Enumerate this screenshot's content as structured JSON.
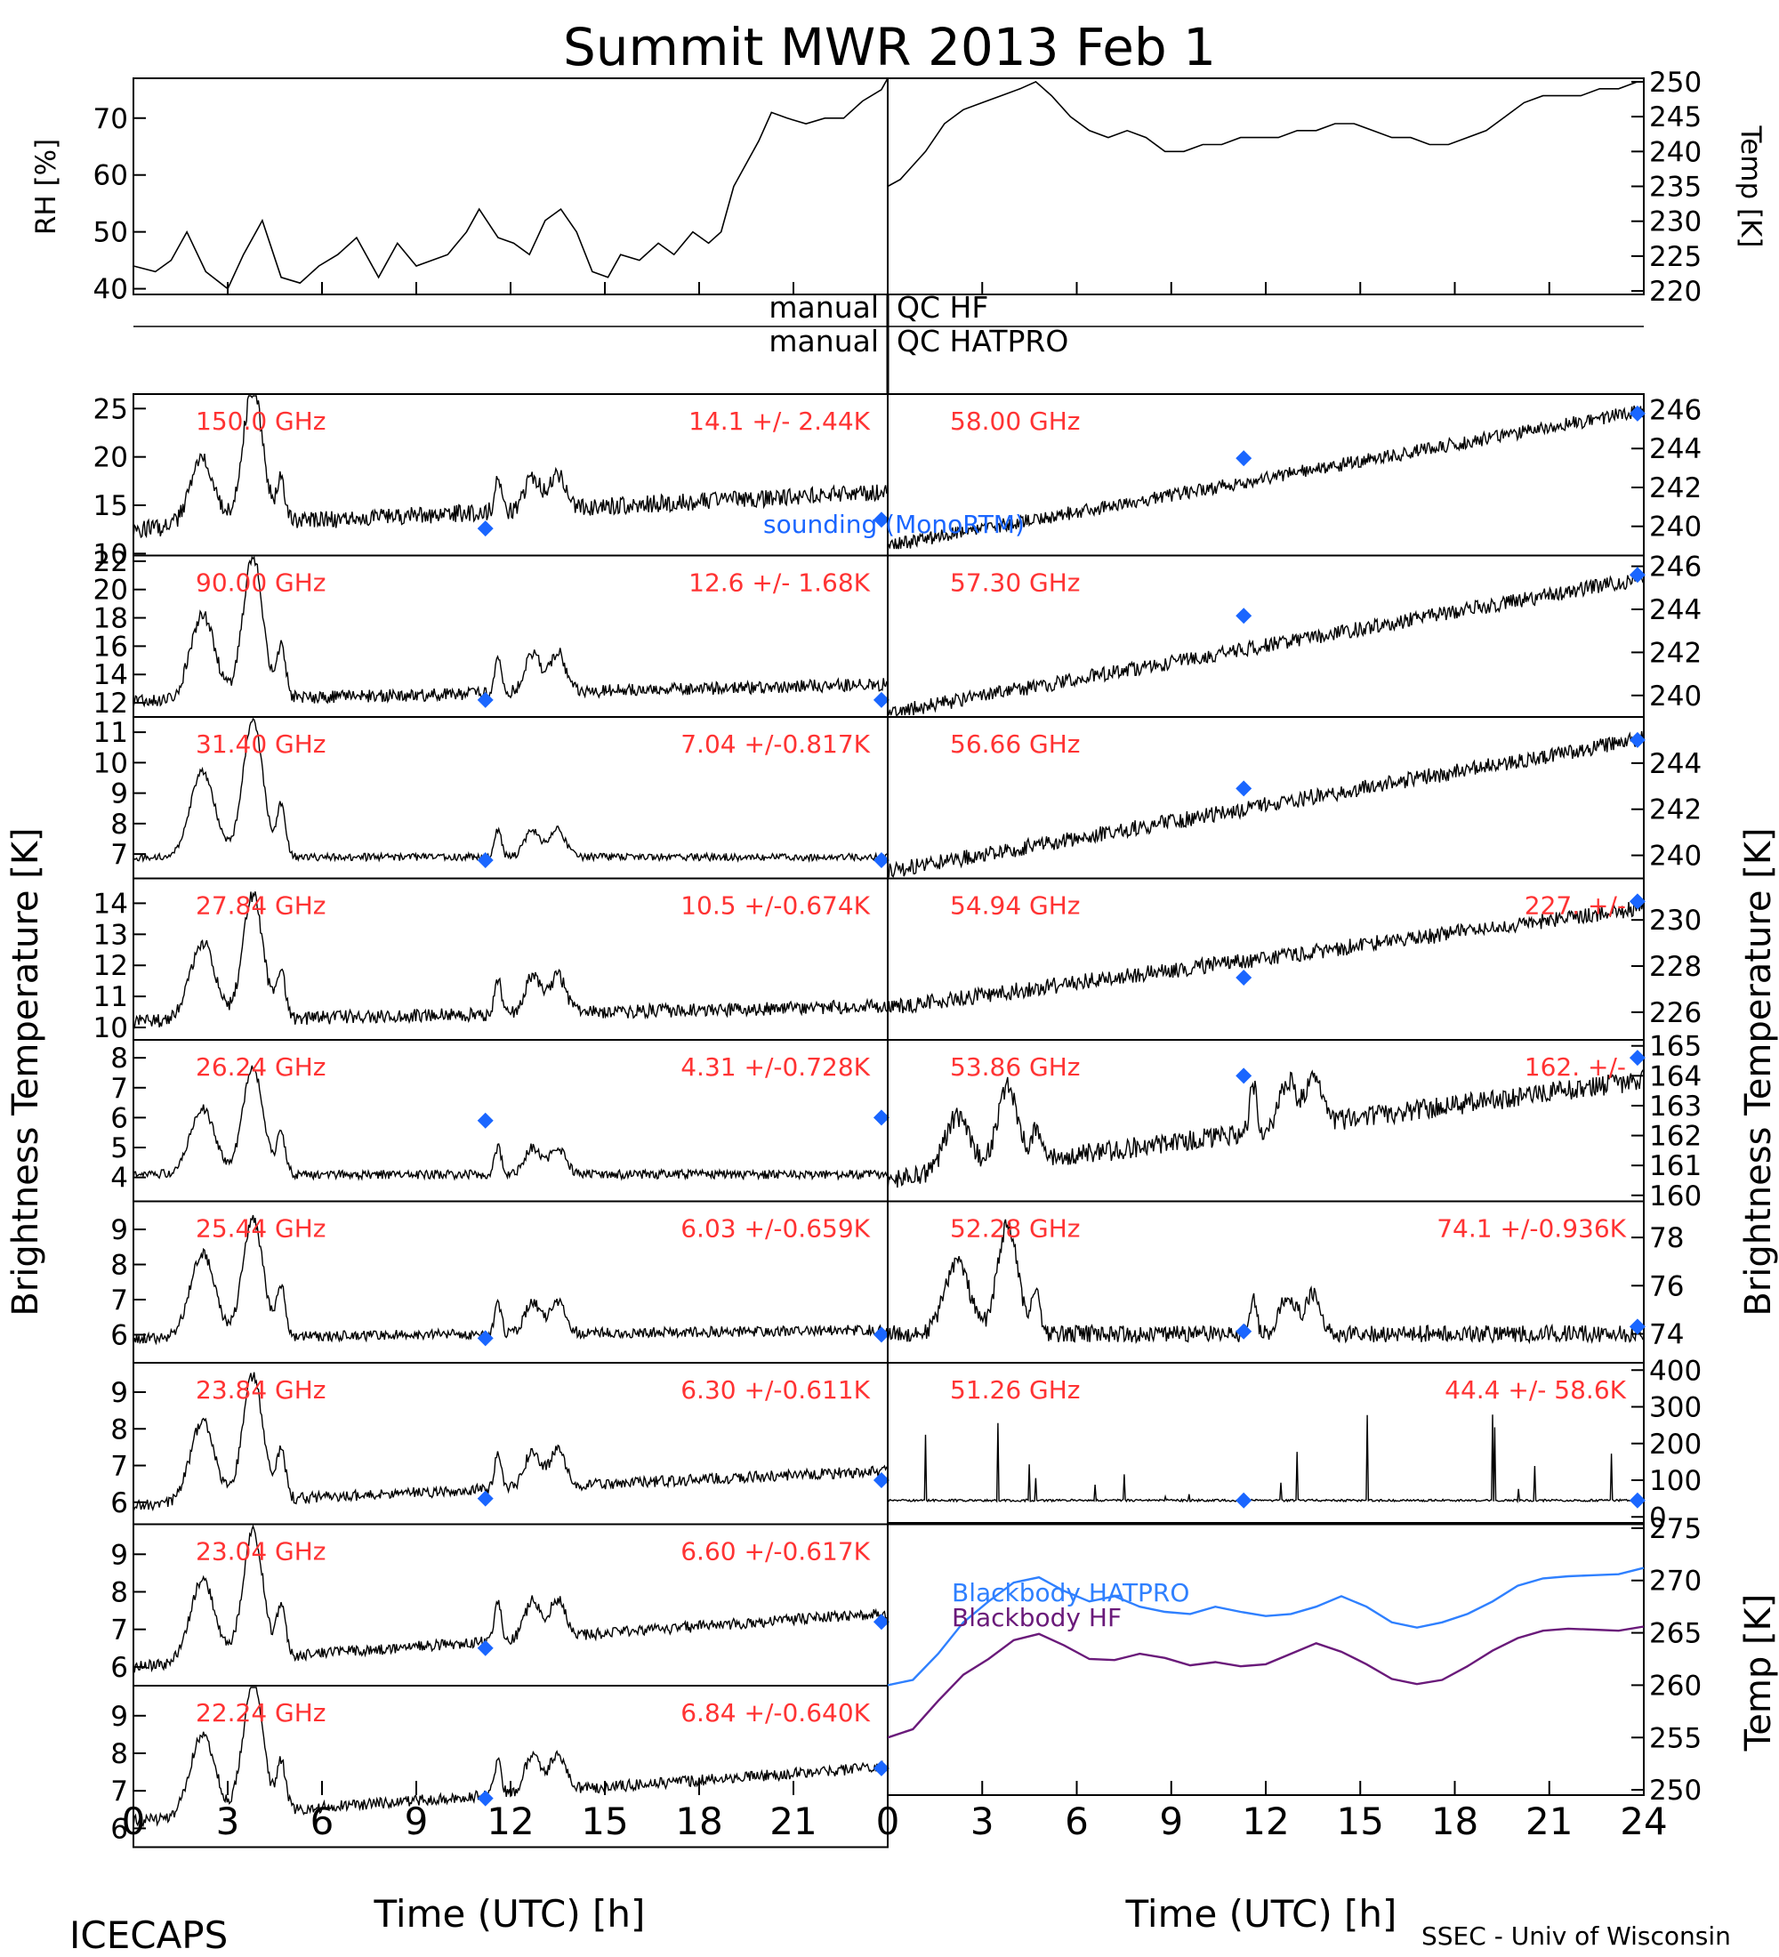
{
  "title": "Summit MWR 2013 Feb  1",
  "footer": {
    "left": "ICECAPS",
    "right": "SSEC - Univ of Wisconsin",
    "xlabel_left": "Time (UTC) [h]",
    "xlabel_right": "Time (UTC) [h]"
  },
  "qc": {
    "hf_left": "manual",
    "hf_right": "QC HF",
    "hatpro_left": "manual",
    "hatpro_right": "QC HATPRO"
  },
  "side_labels": {
    "bt_left": "Brightness Temperature [K]",
    "bt_right": "Brightness Temperature [K]",
    "bb_right": "Temp [K]"
  },
  "colors": {
    "freq_label": "#ff3333",
    "sounding": "#1a66ff",
    "blackbody_hatpro": "#2f80ff",
    "blackbody_hf": "#6a1a7a",
    "trace": "#000000"
  },
  "chart_data": [
    {
      "id": "rh-temp",
      "type": "line",
      "x_ticks": [
        "0",
        "3",
        "6",
        "9",
        "12",
        "15",
        "18",
        "21",
        "24"
      ],
      "xlim": [
        0,
        24
      ],
      "left": {
        "ylabel": "RH [%]",
        "ylim": [
          39,
          77
        ],
        "yticks": [
          "40",
          "50",
          "60",
          "70"
        ],
        "series": {
          "x": [
            0,
            0.7,
            1.2,
            1.7,
            2.3,
            3.0,
            3.5,
            4.1,
            4.7,
            5.3,
            5.9,
            6.5,
            7.1,
            7.8,
            8.4,
            9.0,
            9.5,
            10.0,
            10.6,
            11.0,
            11.6,
            12.1,
            12.6,
            13.1,
            13.6,
            14.1,
            14.6,
            15.1,
            15.5,
            16.1,
            16.7,
            17.2,
            17.8,
            18.3,
            18.7,
            19.1,
            19.5,
            19.9,
            20.3,
            20.8,
            21.4,
            22.0,
            22.6,
            23.2,
            23.8,
            24.0
          ],
          "y": [
            44,
            43,
            45,
            50,
            43,
            40,
            46,
            52,
            42,
            41,
            44,
            46,
            49,
            42,
            48,
            44,
            45,
            46,
            50,
            54,
            49,
            48,
            46,
            52,
            54,
            50,
            43,
            42,
            46,
            45,
            48,
            46,
            50,
            48,
            50,
            58,
            62,
            66,
            71,
            70,
            69,
            70,
            70,
            73,
            75,
            77
          ]
        }
      },
      "right": {
        "ylabel": "Temp [K]",
        "ylim": [
          219.5,
          250.5
        ],
        "yticks": [
          "220",
          "225",
          "230",
          "235",
          "240",
          "245",
          "250"
        ],
        "series": {
          "x": [
            0,
            0.4,
            0.8,
            1.2,
            1.8,
            2.4,
            3.0,
            3.6,
            4.2,
            4.7,
            5.2,
            5.8,
            6.4,
            7.0,
            7.6,
            8.2,
            8.8,
            9.4,
            10.0,
            10.6,
            11.2,
            11.8,
            12.4,
            13.0,
            13.6,
            14.2,
            14.8,
            15.4,
            16.0,
            16.6,
            17.2,
            17.8,
            18.4,
            19.0,
            19.6,
            20.2,
            20.8,
            21.4,
            22.0,
            22.6,
            23.2,
            23.8,
            24.0
          ],
          "y": [
            235,
            236,
            238,
            240,
            244,
            246,
            247,
            248,
            249,
            250,
            248,
            245,
            243,
            242,
            243,
            242,
            240,
            240,
            241,
            241,
            242,
            242,
            242,
            243,
            243,
            244,
            244,
            243,
            242,
            242,
            241,
            241,
            242,
            243,
            245,
            247,
            248,
            248,
            248,
            249,
            249,
            250,
            250
          ]
        }
      }
    },
    {
      "id": "tb-left",
      "type": "line",
      "x_ticks": [
        "0",
        "3",
        "6",
        "9",
        "12",
        "15",
        "18",
        "21"
      ],
      "xlim": [
        0,
        24
      ],
      "channels": [
        {
          "freq": "150.0 GHz",
          "stat": "14.1 +/-  2.44K",
          "ylim": [
            9.8,
            26.5
          ],
          "yticks": [
            "10",
            "15",
            "20",
            "25"
          ],
          "base": 12.5,
          "slope": 0.16,
          "noise": 0.9,
          "p1": 7,
          "p2": 14,
          "pc": 3.5,
          "sound": [
            [
              11.2,
              12.6
            ],
            [
              23.8,
              13.5
            ]
          ]
        },
        {
          "freq": "90.00 GHz",
          "stat": "12.6 +/-  1.68K",
          "ylim": [
            11.0,
            22.4
          ],
          "yticks": [
            "12",
            "14",
            "16",
            "18",
            "20",
            "22"
          ],
          "base": 12.1,
          "slope": 0.05,
          "noise": 0.45,
          "p1": 6,
          "p2": 10,
          "pc": 2.8,
          "sound": [
            [
              11.2,
              12.2
            ],
            [
              23.8,
              12.2
            ]
          ]
        },
        {
          "freq": "31.40 GHz",
          "stat": "7.04 +/-0.817K",
          "ylim": [
            6.2,
            11.5
          ],
          "yticks": [
            "7",
            "8",
            "9",
            "10",
            "11"
          ],
          "base": 6.9,
          "slope": 0.0,
          "noise": 0.12,
          "p1": 2.8,
          "p2": 4.5,
          "pc": 0.9,
          "sound": [
            [
              11.2,
              6.8
            ],
            [
              23.8,
              6.8
            ]
          ]
        },
        {
          "freq": "27.84 GHz",
          "stat": "10.5 +/-0.674K",
          "ylim": [
            9.6,
            14.8
          ],
          "yticks": [
            "10",
            "11",
            "12",
            "13",
            "14"
          ],
          "base": 10.2,
          "slope": 0.02,
          "noise": 0.22,
          "p1": 2.5,
          "p2": 4,
          "pc": 1.2,
          "sound": []
        },
        {
          "freq": "26.24 GHz",
          "stat": "4.31 +/-0.728K",
          "ylim": [
            3.2,
            8.6
          ],
          "yticks": [
            "4",
            "5",
            "6",
            "7",
            "8"
          ],
          "base": 4.1,
          "slope": 0.0,
          "noise": 0.15,
          "p1": 2.2,
          "p2": 3.6,
          "pc": 0.9,
          "sound": [
            [
              11.2,
              5.9
            ],
            [
              23.8,
              6.0
            ]
          ]
        },
        {
          "freq": "25.44 GHz",
          "stat": "6.03 +/-0.659K",
          "ylim": [
            5.2,
            9.8
          ],
          "yticks": [
            "6",
            "7",
            "8",
            "9"
          ],
          "base": 5.9,
          "slope": 0.01,
          "noise": 0.15,
          "p1": 2.4,
          "p2": 3.4,
          "pc": 0.9,
          "sound": [
            [
              11.2,
              5.9
            ],
            [
              23.8,
              6.0
            ]
          ]
        },
        {
          "freq": "23.84 GHz",
          "stat": "6.30 +/-0.611K",
          "ylim": [
            5.4,
            9.8
          ],
          "yticks": [
            "6",
            "7",
            "8",
            "9"
          ],
          "base": 5.9,
          "slope": 0.04,
          "noise": 0.15,
          "p1": 2.2,
          "p2": 3.4,
          "pc": 1.0,
          "sound": [
            [
              11.2,
              6.1
            ],
            [
              23.8,
              6.6
            ]
          ]
        },
        {
          "freq": "23.04 GHz",
          "stat": "6.60 +/-0.617K",
          "ylim": [
            5.5,
            9.8
          ],
          "yticks": [
            "6",
            "7",
            "8",
            "9"
          ],
          "base": 6.0,
          "slope": 0.06,
          "noise": 0.15,
          "p1": 2.2,
          "p2": 3.4,
          "pc": 1.0,
          "sound": [
            [
              11.2,
              6.5
            ],
            [
              23.8,
              7.2
            ]
          ]
        },
        {
          "freq": "22.24 GHz",
          "stat": "6.84 +/-0.640K",
          "ylim": [
            5.5,
            9.8
          ],
          "yticks": [
            "6",
            "7",
            "8",
            "9"
          ],
          "base": 6.2,
          "slope": 0.06,
          "noise": 0.15,
          "p1": 2.2,
          "p2": 3.4,
          "pc": 1.0,
          "sound": [
            [
              11.2,
              6.8
            ],
            [
              23.8,
              7.6
            ]
          ]
        }
      ],
      "sounding_label": "sounding (MonoRTM)"
    },
    {
      "id": "tb-right",
      "type": "line",
      "x_ticks": [
        "0",
        "3",
        "6",
        "9",
        "12",
        "15",
        "18",
        "21",
        "24"
      ],
      "xlim": [
        0,
        24
      ],
      "channels": [
        {
          "freq": "58.00 GHz",
          "stat": "",
          "ylim": [
            238.5,
            246.8
          ],
          "yticks": [
            "240",
            "242",
            "244",
            "246"
          ],
          "base": 239.0,
          "slope": 0.29,
          "noise": 0.35,
          "p1": 0,
          "p2": 0,
          "pc": 0,
          "sound": [
            [
              11.3,
              243.5
            ],
            [
              23.8,
              245.8
            ]
          ]
        },
        {
          "freq": "57.30 GHz",
          "stat": "",
          "ylim": [
            239.0,
            246.5
          ],
          "yticks": [
            "240",
            "242",
            "244",
            "246"
          ],
          "base": 239.2,
          "slope": 0.26,
          "noise": 0.35,
          "p1": 0,
          "p2": 0,
          "pc": 0,
          "sound": [
            [
              11.3,
              243.7
            ],
            [
              23.8,
              245.6
            ]
          ]
        },
        {
          "freq": "56.66 GHz",
          "stat": "",
          "ylim": [
            239.0,
            246.0
          ],
          "yticks": [
            "240",
            "242",
            "244"
          ],
          "base": 239.3,
          "slope": 0.24,
          "noise": 0.35,
          "p1": 0,
          "p2": 0,
          "pc": 0,
          "sound": [
            [
              11.3,
              242.9
            ],
            [
              23.8,
              245.0
            ]
          ]
        },
        {
          "freq": "54.94 GHz",
          "stat": "227. +/-",
          "ylim": [
            224.8,
            231.8
          ],
          "yticks": [
            "226",
            "228",
            "230"
          ],
          "base": 226.2,
          "slope": 0.18,
          "noise": 0.35,
          "p1": 0,
          "p2": 0,
          "pc": 0,
          "sound": [
            [
              11.3,
              227.5
            ],
            [
              23.8,
              230.8
            ]
          ]
        },
        {
          "freq": "53.86 GHz",
          "stat": "162. +/-",
          "ylim": [
            159.8,
            165.2
          ],
          "yticks": [
            "160",
            "161",
            "162",
            "163",
            "164",
            "165"
          ],
          "base": 160.5,
          "slope": 0.14,
          "noise": 0.35,
          "p1": 1.8,
          "p2": 2.6,
          "pc": 1.6,
          "sound": [
            [
              11.3,
              164.0
            ],
            [
              23.8,
              164.6
            ]
          ]
        },
        {
          "freq": "52.28 GHz",
          "stat": "74.1 +/-0.936K",
          "ylim": [
            72.8,
            79.5
          ],
          "yticks": [
            "74",
            "76",
            "78"
          ],
          "base": 74.0,
          "slope": 0.0,
          "noise": 0.35,
          "p1": 3,
          "p2": 4.5,
          "pc": 1.6,
          "sound": [
            [
              11.3,
              74.1
            ],
            [
              23.8,
              74.3
            ]
          ]
        },
        {
          "freq": "51.26 GHz",
          "stat": "44.4 +/-  58.6K",
          "ylim": [
            -20,
            420
          ],
          "yticks": [
            "0",
            "100",
            "200",
            "300",
            "400"
          ],
          "base": 45,
          "slope": 0.0,
          "noise": 3,
          "p1": 0,
          "p2": 0,
          "pc": 0,
          "sound": [
            [
              11.3,
              45
            ],
            [
              23.8,
              45
            ]
          ]
        }
      ]
    },
    {
      "id": "blackbody",
      "type": "line",
      "xlim": [
        0,
        24
      ],
      "ylim": [
        249.5,
        275.5
      ],
      "yticks": [
        "250",
        "255",
        "260",
        "265",
        "270",
        "275"
      ],
      "series": [
        {
          "name": "Blackbody HATPRO",
          "x": [
            0,
            0.8,
            1.6,
            2.4,
            3.2,
            4.0,
            4.8,
            5.6,
            6.4,
            7.2,
            8.0,
            8.8,
            9.6,
            10.4,
            11.2,
            12.0,
            12.8,
            13.6,
            14.4,
            15.2,
            16.0,
            16.8,
            17.6,
            18.4,
            19.2,
            20.0,
            20.8,
            21.6,
            22.4,
            23.2,
            24.0
          ],
          "y": [
            260,
            260.5,
            263,
            266,
            268,
            269.8,
            270.3,
            269,
            268,
            268.5,
            267.5,
            267,
            266.8,
            267.5,
            267,
            266.6,
            266.8,
            267.5,
            268.5,
            267.5,
            266,
            265.5,
            266,
            266.8,
            268,
            269.5,
            270.2,
            270.4,
            270.5,
            270.6,
            271.2
          ]
        },
        {
          "name": "Blackbody HF",
          "x": [
            0,
            0.8,
            1.6,
            2.4,
            3.2,
            4.0,
            4.8,
            5.6,
            6.4,
            7.2,
            8.0,
            8.8,
            9.6,
            10.4,
            11.2,
            12.0,
            12.8,
            13.6,
            14.4,
            15.2,
            16.0,
            16.8,
            17.6,
            18.4,
            19.2,
            20.0,
            20.8,
            21.6,
            22.4,
            23.2,
            24.0
          ],
          "y": [
            255,
            255.8,
            258.5,
            261,
            262.5,
            264.3,
            264.9,
            263.8,
            262.5,
            262.4,
            263,
            262.6,
            261.9,
            262.2,
            261.8,
            262,
            263,
            264,
            263.2,
            262,
            260.6,
            260.1,
            260.5,
            261.8,
            263.3,
            264.5,
            265.2,
            265.4,
            265.3,
            265.2,
            265.6
          ]
        }
      ],
      "ylabel": "Temp [K]"
    }
  ]
}
